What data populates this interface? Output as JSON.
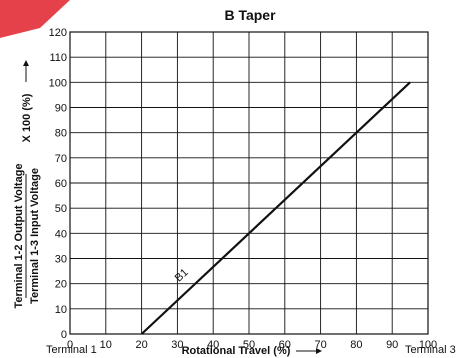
{
  "chart_data": {
    "type": "line",
    "title": "B Taper",
    "xlabel": "Rotational Travel (%)",
    "ylabel_line1": "Terminal 1-2 Output Voltage",
    "ylabel_line2": "Terminal 1-3 Input Voltage",
    "ylabel_suffix": "X 100 (%)",
    "xlim": [
      0,
      100
    ],
    "ylim": [
      0,
      120
    ],
    "xticks": [
      0,
      10,
      20,
      30,
      40,
      50,
      60,
      70,
      80,
      90,
      100
    ],
    "yticks": [
      0,
      10,
      20,
      30,
      40,
      50,
      60,
      70,
      80,
      90,
      100,
      110,
      120
    ],
    "grid": true,
    "series": [
      {
        "name": "B1",
        "x": [
          20,
          95
        ],
        "y": [
          0,
          100
        ]
      }
    ],
    "terminal_left": "Terminal 1",
    "terminal_right": "Terminal 3",
    "curve_label": "B1"
  },
  "colors": {
    "line": "#111111",
    "grid": "#111111",
    "watermark": "#e0202a"
  }
}
